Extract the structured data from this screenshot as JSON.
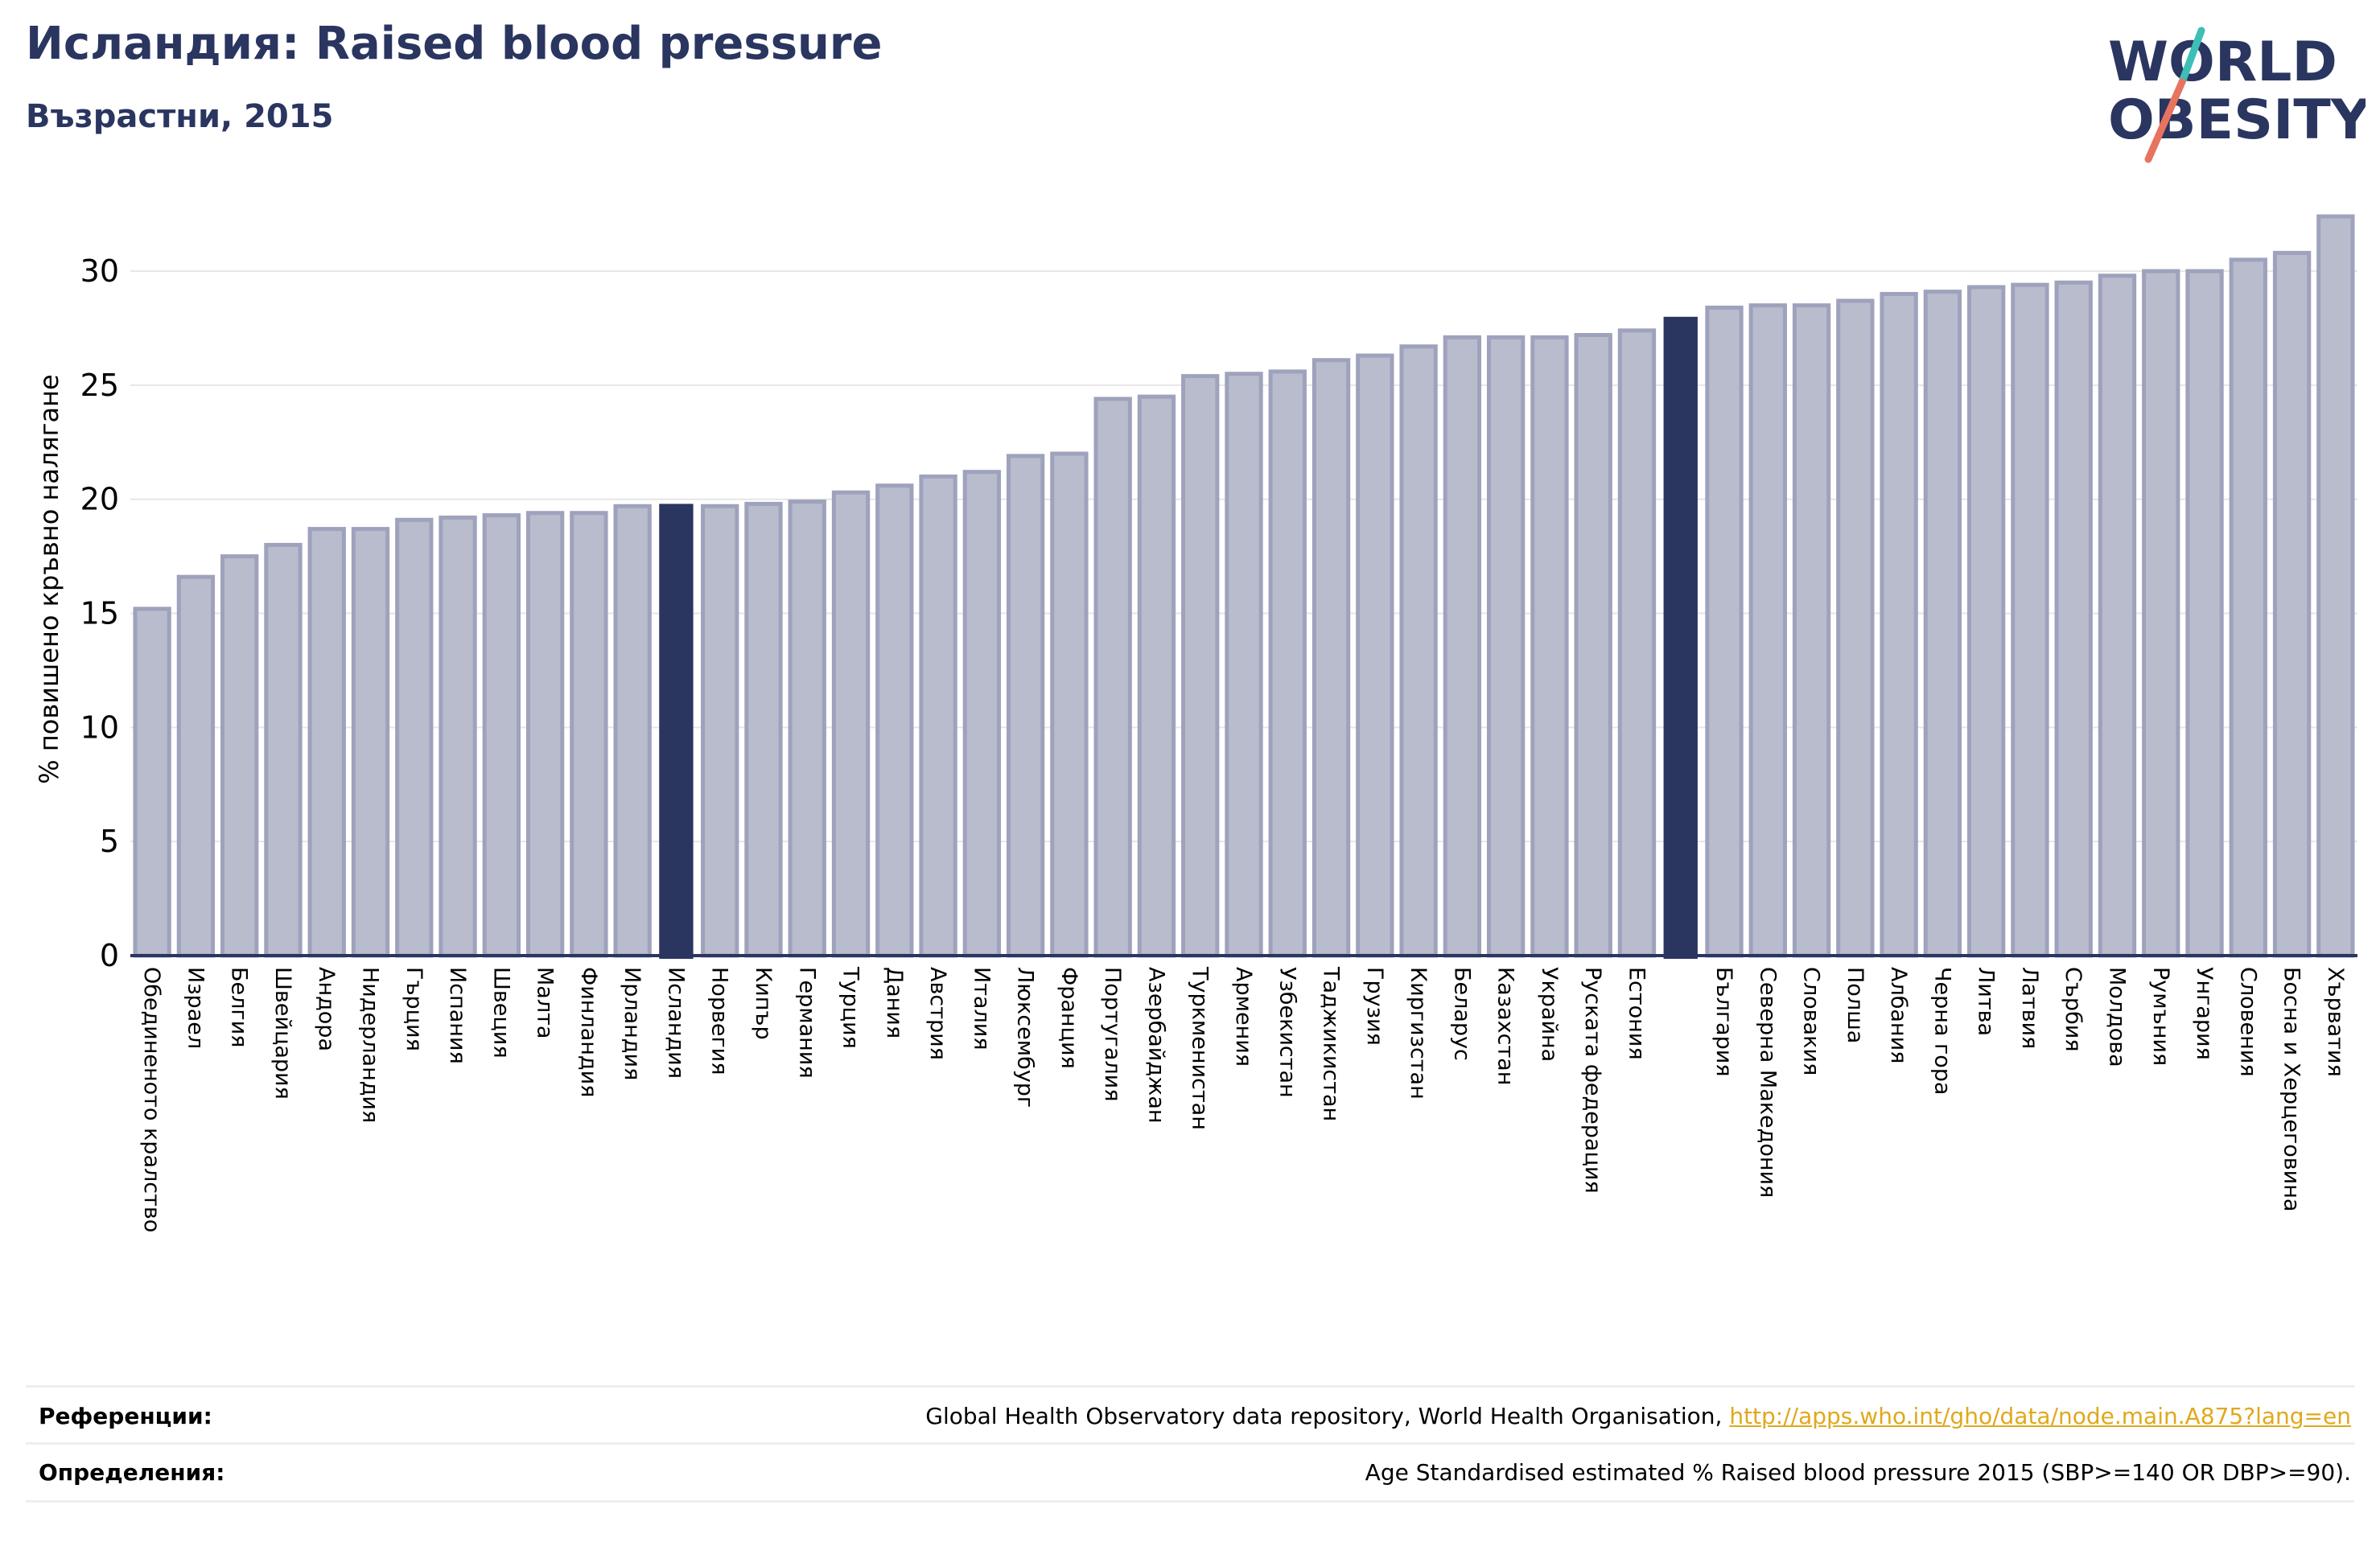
{
  "header": {
    "title": "Исландия: Raised blood pressure",
    "subtitle": "Възрастни, 2015"
  },
  "logo": {
    "line1": "WORLD",
    "line2": "OBESITY"
  },
  "colors": {
    "title": "#2a3560",
    "bar": "#b9bccd",
    "bar_edge": "#9ea2bc",
    "highlight": "#2a3560",
    "grid": "#e6e6e6",
    "link": "#e0a81c",
    "logo_teal": "#3dbfb8",
    "logo_coral": "#e8735f"
  },
  "chart_data": {
    "type": "bar",
    "ylabel": "% повишено кръвно налягане",
    "ylim": [
      0,
      33
    ],
    "yticks": [
      0,
      5,
      10,
      15,
      20,
      25,
      30
    ],
    "grid": true,
    "categories": [
      "Обединеното кралство",
      "Израел",
      "Белгия",
      "Швейцария",
      "Андора",
      "Нидерландия",
      "Гърция",
      "Испания",
      "Швеция",
      "Малта",
      "Финландия",
      "Ирландия",
      "Исландия",
      "Норвегия",
      "Кипър",
      "Германия",
      "Турция",
      "Дания",
      "Австрия",
      "Италия",
      "Люксембург",
      "Франция",
      "Португалия",
      "Азербайджан",
      "Туркменистан",
      "Армения",
      "Узбекистан",
      "Таджикистан",
      "Грузия",
      "Киргизстан",
      "Беларус",
      "Казахстан",
      "Украйна",
      "Руската федерация",
      "Естония",
      "",
      "България",
      "Северна Македония",
      "Словакия",
      "Полша",
      "Албания",
      "Черна гора",
      "Литва",
      "Латвия",
      "Сърбия",
      "Молдова",
      "Румъния",
      "Унгария",
      "Словения",
      "Босна и Херцеговина",
      "Хърватия"
    ],
    "values": [
      15.2,
      16.6,
      17.5,
      18.0,
      18.7,
      18.7,
      19.1,
      19.2,
      19.3,
      19.4,
      19.4,
      19.7,
      19.8,
      19.7,
      19.8,
      19.9,
      20.3,
      20.6,
      21.0,
      21.2,
      21.9,
      22.0,
      24.4,
      24.5,
      25.4,
      25.5,
      25.6,
      26.1,
      26.3,
      26.7,
      27.1,
      27.1,
      27.1,
      27.2,
      27.4,
      28.0,
      28.4,
      28.5,
      28.5,
      28.7,
      29.0,
      29.1,
      29.3,
      29.4,
      29.5,
      29.8,
      30.0,
      30.0,
      30.5,
      30.8,
      32.4
    ],
    "highlight_index": [
      12,
      35
    ]
  },
  "footer": {
    "references_label": "Референции:",
    "references_text": "Global Health Observatory data repository, World Health Organisation, ",
    "references_link": "http://apps.who.int/gho/data/node.main.A875?lang=en",
    "definitions_label": "Определения:",
    "definitions_text": "Age Standardised estimated % Raised blood pressure 2015 (SBP>=140 OR DBP>=90)."
  }
}
